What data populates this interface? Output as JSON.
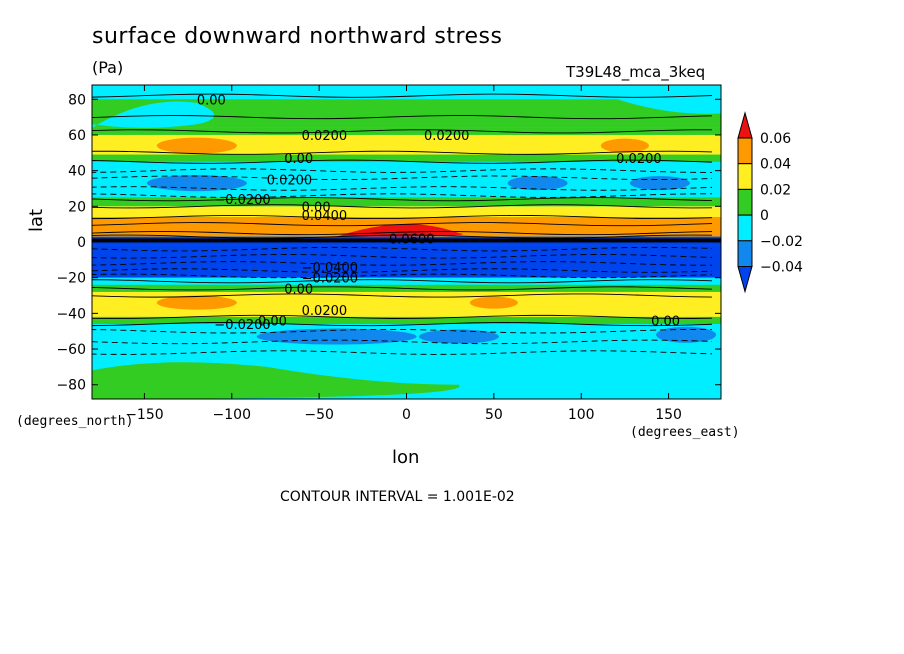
{
  "chart_data": {
    "type": "heatmap",
    "title": "surface downward northward stress",
    "units": "(Pa)",
    "run_label": "T39L48_mca_3keq",
    "xlabel": "lon",
    "ylabel": "lat",
    "x_unit_label": "(degrees_east)",
    "y_unit_label": "(degrees_north)",
    "footer": "CONTOUR INTERVAL = 1.001E-02",
    "xlim": [
      -180,
      180
    ],
    "ylim": [
      -88,
      88
    ],
    "x_ticks": [
      -150,
      -100,
      -50,
      0,
      50,
      100,
      150
    ],
    "x_tick_labels": [
      "−150",
      "−100",
      "−50",
      "0",
      "50",
      "100",
      "150"
    ],
    "y_ticks": [
      80,
      60,
      40,
      20,
      0,
      -20,
      -40,
      -60,
      -80
    ],
    "y_tick_labels": [
      "80",
      "60",
      "40",
      "20",
      "0",
      "−20",
      "−40",
      "−60",
      "−80"
    ],
    "colorbar": {
      "levels": [
        "0.06",
        "0.04",
        "0.02",
        "0",
        "−0.02",
        "−0.04"
      ],
      "colors": [
        "#ee1111",
        "#ff9900",
        "#ffee22",
        "#33cc22",
        "#00eeff",
        "#1188ee",
        "#0044ee"
      ]
    },
    "latitude_bands": [
      {
        "lat": [
          74,
          88
        ],
        "class": "0 to 0.02"
      },
      {
        "lat": [
          48,
          62
        ],
        "class": "0.02 to 0.04"
      },
      {
        "lat": [
          26,
          42
        ],
        "class": "-0.02 to 0"
      },
      {
        "lat": [
          3,
          18
        ],
        "class": "0.04 to 0.06"
      },
      {
        "lat": [
          -18,
          0
        ],
        "class": "-0.06 to -0.04"
      },
      {
        "lat": [
          -44,
          -28
        ],
        "class": "0.02 to 0.04"
      },
      {
        "lat": [
          -88,
          -48
        ],
        "class": "-0.02 to 0"
      }
    ],
    "contour_labels": [
      "0.00",
      "0.0200",
      "0.0200",
      "0.00",
      "0.0200",
      "−0.0200",
      "0.0200",
      "0.00",
      "0.0400",
      "0.0600",
      "−0.0400",
      "−0.0200",
      "0.00",
      "0.0200",
      "−0.0200",
      "0.00",
      "0.00"
    ]
  }
}
